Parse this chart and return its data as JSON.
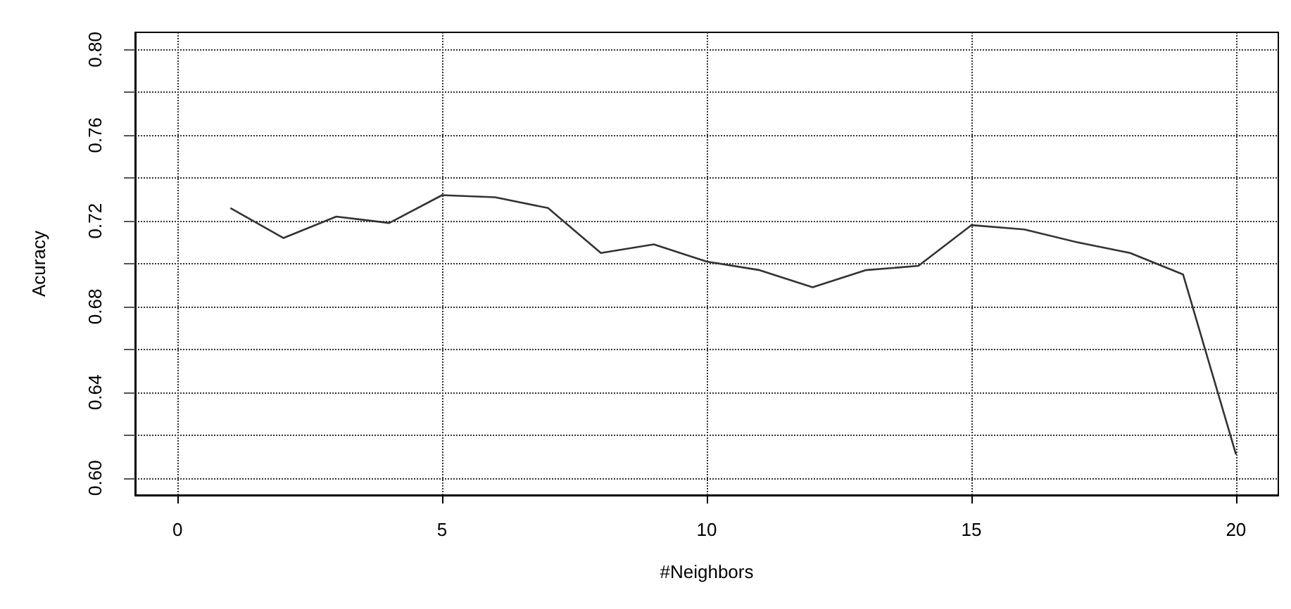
{
  "chart_data": {
    "type": "line",
    "xlabel": "#Neighbors",
    "ylabel": "Acuracy",
    "x": [
      1,
      2,
      3,
      4,
      5,
      6,
      7,
      8,
      9,
      10,
      11,
      12,
      13,
      14,
      15,
      16,
      17,
      18,
      19,
      20
    ],
    "series": [
      {
        "color": "#333333",
        "values": [
          0.726,
          0.712,
          0.722,
          0.719,
          0.732,
          0.731,
          0.726,
          0.705,
          0.709,
          0.701,
          0.697,
          0.689,
          0.697,
          0.699,
          0.718,
          0.716,
          0.71,
          0.705,
          0.695,
          0.611
        ]
      }
    ],
    "xlim": [
      -0.8,
      20.8
    ],
    "xticks": [
      0,
      5,
      10,
      15,
      20
    ],
    "ylim": [
      0.592,
      0.808
    ],
    "yticks": [
      {
        "value": 0.6,
        "label": "0.60"
      },
      {
        "value": 0.62,
        "label": null
      },
      {
        "value": 0.64,
        "label": "0.64"
      },
      {
        "value": 0.66,
        "label": null
      },
      {
        "value": 0.68,
        "label": "0.68"
      },
      {
        "value": 0.7,
        "label": null
      },
      {
        "value": 0.72,
        "label": "0.72"
      },
      {
        "value": 0.74,
        "label": null
      },
      {
        "value": 0.76,
        "label": "0.76"
      },
      {
        "value": 0.78,
        "label": null
      },
      {
        "value": 0.8,
        "label": "0.80"
      }
    ],
    "grid": true,
    "marker": "none",
    "line_style": "solid"
  }
}
